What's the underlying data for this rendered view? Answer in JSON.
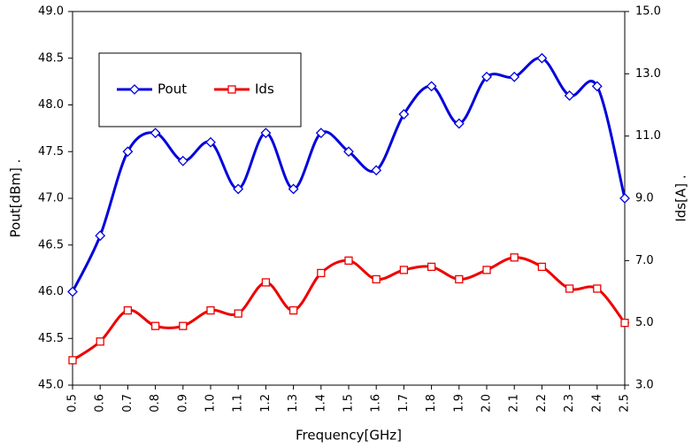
{
  "chart_data": {
    "type": "line",
    "xlabel": "Frequency[GHz]",
    "ylabel": "Pout[dBm] .",
    "y2label": "Ids[A] .",
    "x": [
      0.5,
      0.6,
      0.7,
      0.8,
      0.9,
      1.0,
      1.1,
      1.2,
      1.3,
      1.4,
      1.5,
      1.6,
      1.7,
      1.8,
      1.9,
      2.0,
      2.1,
      2.2,
      2.3,
      2.4,
      2.5
    ],
    "series": [
      {
        "name": "Pout",
        "color": "#0000dd",
        "marker": "diamond",
        "axis": "y",
        "values": [
          46.0,
          46.6,
          47.5,
          47.7,
          47.4,
          47.6,
          47.1,
          47.7,
          47.1,
          47.7,
          47.5,
          47.3,
          47.9,
          48.2,
          47.8,
          48.3,
          48.3,
          48.5,
          48.1,
          48.2,
          47.0
        ]
      },
      {
        "name": "Ids",
        "color": "#ee0000",
        "marker": "square",
        "axis": "y2",
        "values": [
          3.8,
          4.4,
          5.4,
          4.9,
          4.9,
          5.4,
          5.3,
          6.3,
          5.4,
          6.6,
          7.0,
          6.4,
          6.7,
          6.8,
          6.4,
          6.7,
          7.1,
          6.8,
          6.1,
          6.1,
          5.0
        ]
      }
    ],
    "xlim": [
      0.5,
      2.5
    ],
    "xticks": [
      0.5,
      0.6,
      0.7,
      0.8,
      0.9,
      {
        "value": 1.0,
        "label": "1.0"
      },
      1.1,
      1.2,
      1.3,
      1.4,
      1.5,
      1.6,
      1.7,
      1.8,
      1.9,
      {
        "value": 2.0,
        "label": "2.0"
      },
      2.1,
      2.2,
      2.3,
      2.4,
      2.5
    ],
    "ylim": [
      45,
      49
    ],
    "yticks": [
      {
        "value": 45,
        "label": "45.0"
      },
      45.5,
      {
        "value": 46,
        "label": "46.0"
      },
      46.5,
      {
        "value": 47,
        "label": "47.0"
      },
      47.5,
      {
        "value": 48,
        "label": "48.0"
      },
      48.5,
      {
        "value": 49,
        "label": "49.0"
      }
    ],
    "y2lim": [
      3,
      15
    ],
    "y2ticks": [
      {
        "value": 3,
        "label": "3.0"
      },
      {
        "value": 5,
        "label": "5.0"
      },
      {
        "value": 7,
        "label": "7.0"
      },
      {
        "value": 9,
        "label": "9.0"
      },
      {
        "value": 11,
        "label": "11.0"
      },
      {
        "value": 13,
        "label": "13.0"
      },
      {
        "value": 15,
        "label": "15.0"
      }
    ],
    "grid": false,
    "legend": "upper left"
  }
}
